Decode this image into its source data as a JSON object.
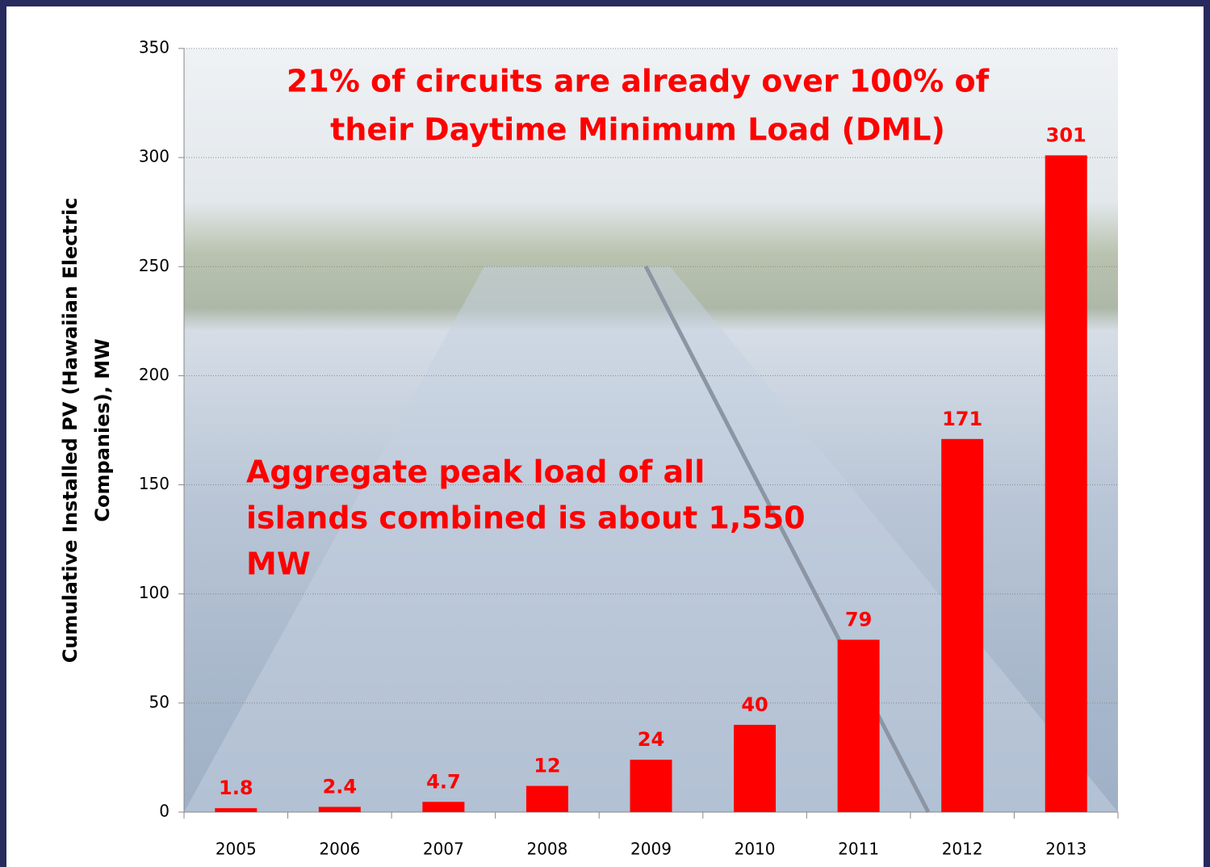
{
  "chart_data": {
    "type": "bar",
    "y_label": [
      "Cumulative Installed PV (Hawaiian Electric",
      "Companies), MW"
    ],
    "annotations": [
      [
        "21% of circuits are already over 100% of",
        "their Daytime Minimum Load (DML)"
      ],
      [
        "Aggregate peak load of all",
        "islands combined is about 1,550",
        "MW"
      ]
    ],
    "categories": [
      "2005",
      "2006",
      "2007",
      "2008",
      "2009",
      "2010",
      "2011",
      "2012",
      "2013"
    ],
    "values": [
      1.8,
      2.4,
      4.7,
      12,
      24,
      40,
      79,
      171,
      301
    ],
    "color": "#ff0000",
    "ylim": [
      0,
      350
    ],
    "yticks": [
      0,
      50,
      100,
      150,
      200,
      250,
      300,
      350
    ],
    "grid": true
  }
}
